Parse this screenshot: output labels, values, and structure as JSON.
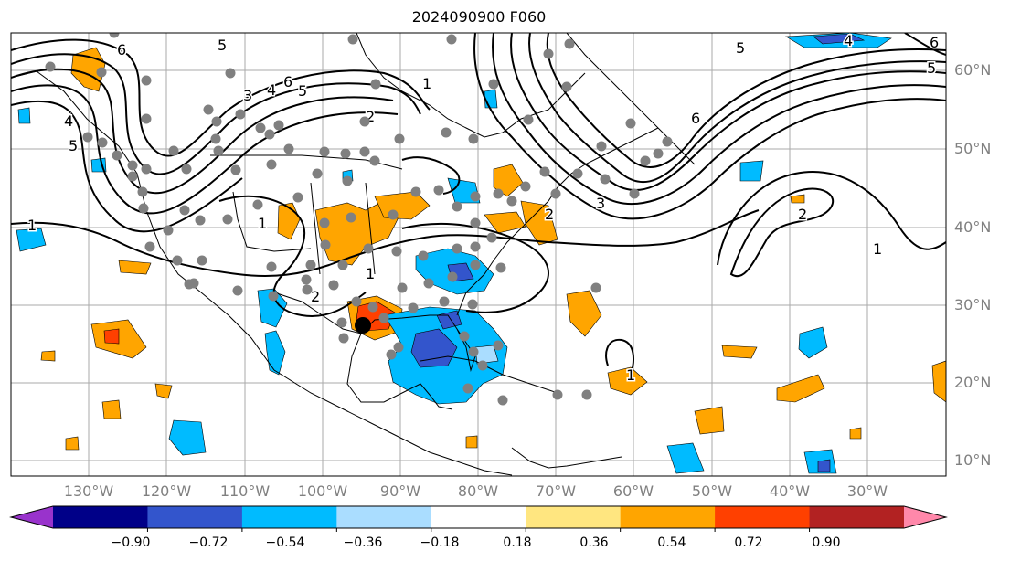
{
  "title": "2024090900 F060",
  "lat_labels": [
    "60°N",
    "50°N",
    "40°N",
    "30°N",
    "20°N",
    "10°N"
  ],
  "lon_labels": [
    "130°W",
    "120°W",
    "110°W",
    "100°W",
    "90°W",
    "80°W",
    "70°W",
    "60°W",
    "50°W",
    "40°W",
    "30°W"
  ],
  "colorbar": {
    "colors": [
      "#9933cc",
      "#000088",
      "#3355cc",
      "#00bbff",
      "#aaddff",
      "#ffffff",
      "#ffe680",
      "#ffa500",
      "#ff4000",
      "#b22222",
      "#ff88aa"
    ],
    "labels": [
      "−0.90",
      "−0.72",
      "−0.54",
      "−0.36",
      "−0.18",
      "0.18",
      "0.36",
      "0.54",
      "0.72",
      "0.90"
    ]
  },
  "contour_labels": [
    "6",
    "5",
    "4",
    "3",
    "6",
    "5",
    "2",
    "1",
    "5",
    "4",
    "6",
    "5",
    "6",
    "3",
    "2",
    "1",
    "1",
    "2",
    "1",
    "1",
    "2",
    "1",
    "4",
    "5"
  ],
  "marker_colors": {
    "station": "#808080",
    "storm": "#000000"
  }
}
